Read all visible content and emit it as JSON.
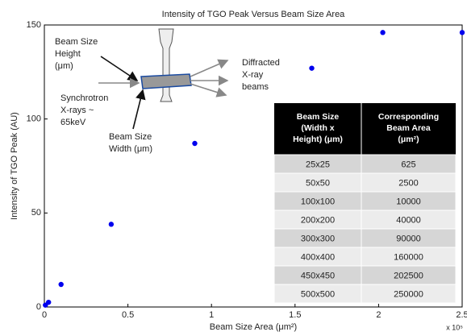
{
  "chart_data": {
    "type": "scatter",
    "title": "Intensity of TGO Peak Versus Beam Size Area",
    "x_label": "Beam Size Area (μm²)",
    "y_label": "Intensity of TGO Peak (AU)",
    "x_multiplier": "x 10⁵",
    "x": [
      625,
      2500,
      10000,
      40000,
      90000,
      160000,
      202500,
      250000
    ],
    "values": [
      1,
      2.5,
      12,
      44,
      87,
      127,
      146,
      146
    ],
    "color": "#0000ee",
    "xlim": [
      0,
      250000
    ],
    "ylim": [
      0,
      150
    ],
    "xticks": [
      0,
      {
        "value": 50000,
        "label": "0.5"
      },
      {
        "value": 100000,
        "label": "1"
      },
      {
        "value": 150000,
        "label": "1.5"
      },
      {
        "value": 200000,
        "label": "2"
      },
      {
        "value": 250000,
        "label": "2.5"
      }
    ],
    "yticks": [
      0,
      50,
      100,
      150
    ],
    "annotations": [
      {
        "lines": [
          "Beam Size",
          "Height",
          "(μm)"
        ]
      },
      {
        "lines": [
          "Synchrotron",
          "X-rays ~",
          "65keV"
        ]
      },
      {
        "lines": [
          "Beam Size",
          "Width (μm)"
        ]
      },
      {
        "lines": [
          "Diffracted",
          "X-ray",
          "beams"
        ]
      }
    ],
    "table": {
      "header": [
        [
          "Beam Size",
          "(Width x",
          "Height) (μm)"
        ],
        [
          "Corresponding",
          "Beam Area",
          "(μm²)"
        ]
      ],
      "rows": [
        [
          "25x25",
          "625"
        ],
        [
          "50x50",
          "2500"
        ],
        [
          "100x100",
          "10000"
        ],
        [
          "200x200",
          "40000"
        ],
        [
          "300x300",
          "90000"
        ],
        [
          "400x400",
          "160000"
        ],
        [
          "450x450",
          "202500"
        ],
        [
          "500x500",
          "250000"
        ]
      ]
    }
  }
}
